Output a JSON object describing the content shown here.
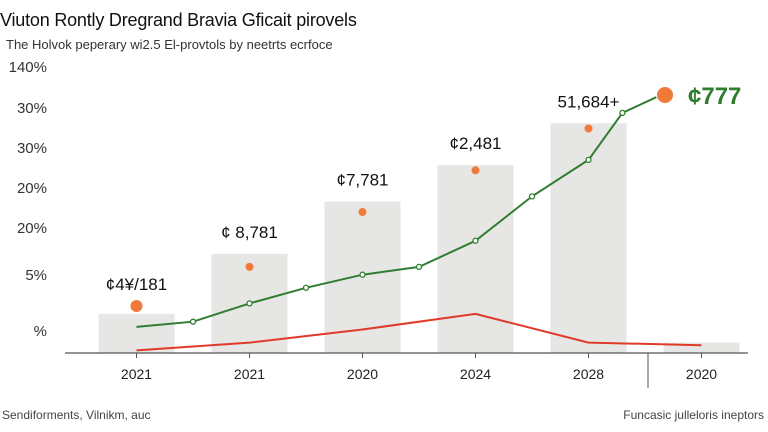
{
  "colors": {
    "bar": "#e6e6e4",
    "green": "#2f7d2f",
    "red": "#e03a2a",
    "dot": "#f07a3a",
    "axis": "#555555"
  },
  "title": "Viuton Rontly Dregrand Bravia Gficait pirovels",
  "subtitle": "The Holvok peperary wi2.5 El-provtols by neetrts ecrfoce",
  "footer_left": "Sendiforments, Vilnikm, auc",
  "footer_right": "Funcasic julleloris ineptors",
  "chart_data": {
    "type": "bar",
    "y_tick_labels": [
      "140%",
      "30%",
      "30%",
      "20%",
      "20%",
      "5%",
      "%"
    ],
    "categories": [
      "2021",
      "2021",
      "2020",
      "2024",
      "2028",
      "2020"
    ],
    "bar_values": [
      0.15,
      0.38,
      0.58,
      0.72,
      0.88,
      0.04
    ],
    "data_labels": [
      "¢4¥/181",
      "¢ 8,781",
      "¢7,781",
      "¢2,481",
      "51,684+",
      ""
    ],
    "dot_values": [
      0.18,
      0.33,
      0.54,
      0.7,
      0.86,
      0.96
    ],
    "end_label": "¢777",
    "green_line": [
      {
        "x": 0.0,
        "y": 0.1
      },
      {
        "x": 0.5,
        "y": 0.12
      },
      {
        "x": 1.0,
        "y": 0.19
      },
      {
        "x": 1.5,
        "y": 0.25
      },
      {
        "x": 2.0,
        "y": 0.3
      },
      {
        "x": 2.5,
        "y": 0.33
      },
      {
        "x": 3.0,
        "y": 0.43
      },
      {
        "x": 3.5,
        "y": 0.6
      },
      {
        "x": 4.0,
        "y": 0.74
      },
      {
        "x": 4.3,
        "y": 0.92
      },
      {
        "x": 4.6,
        "y": 0.98
      }
    ],
    "red_line": [
      {
        "x": 0.0,
        "y": 0.01
      },
      {
        "x": 1.0,
        "y": 0.04
      },
      {
        "x": 2.0,
        "y": 0.09
      },
      {
        "x": 3.0,
        "y": 0.15
      },
      {
        "x": 4.0,
        "y": 0.04
      },
      {
        "x": 5.0,
        "y": 0.03
      }
    ],
    "ylim": [
      0,
      1
    ]
  }
}
